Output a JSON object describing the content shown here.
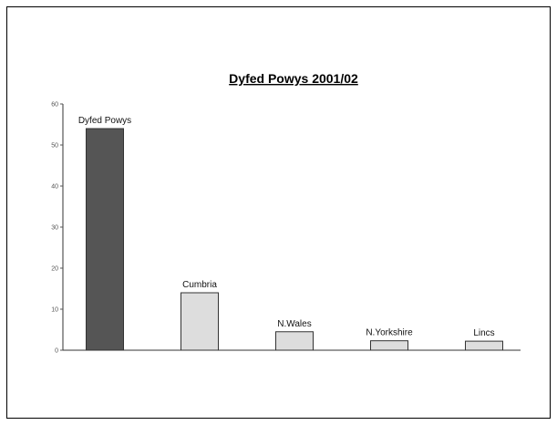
{
  "chart_data": {
    "type": "bar",
    "title": "Dyfed Powys 2001/02",
    "xlabel": "",
    "ylabel": "",
    "categories": [
      "Dyfed Powys",
      "Cumbria",
      "N.Wales",
      "N.Yorkshire",
      "Lincs"
    ],
    "values": [
      54,
      14,
      4.5,
      2.3,
      2.2
    ],
    "ylim": [
      0,
      60
    ],
    "yticks": [
      "0",
      "10",
      "20",
      "30",
      "40",
      "50",
      "60"
    ],
    "grid": false,
    "colors": {
      "highlight": "#555555",
      "other": "#dddddd",
      "stroke": "#333333"
    }
  }
}
